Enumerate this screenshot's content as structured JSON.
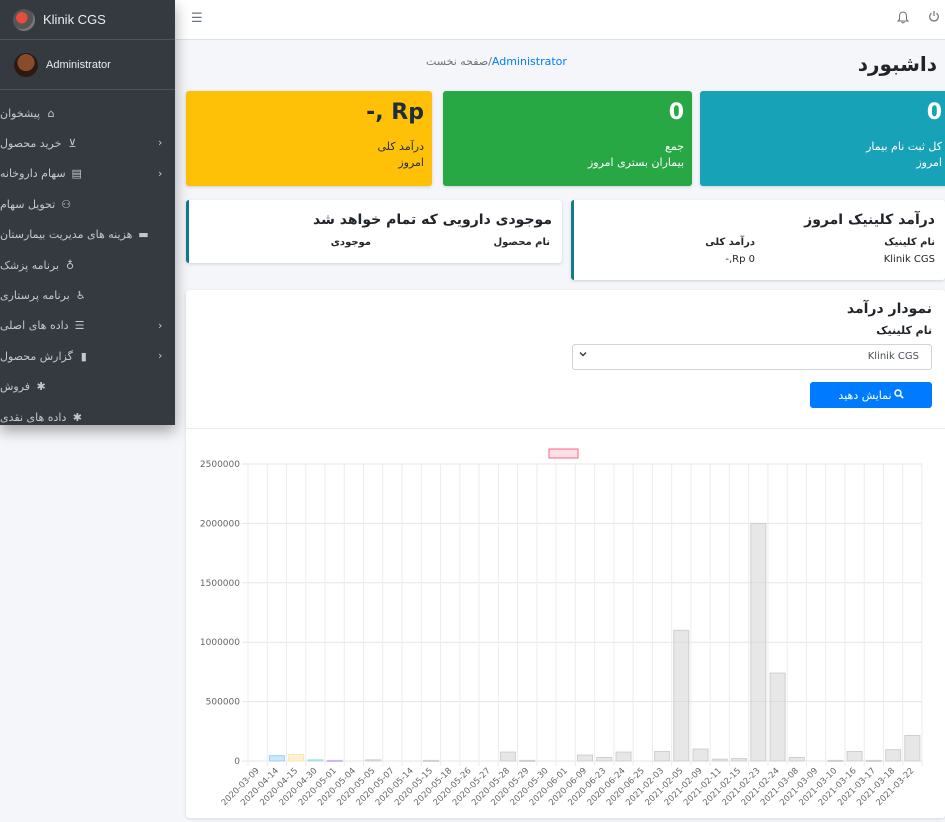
{
  "app": {
    "brand": "Klinik CGS",
    "user": "Administrator"
  },
  "sidebar": {
    "items": [
      {
        "label": "پیشخوان",
        "icon": "home-icon",
        "glyph": "⌂",
        "chevron": false
      },
      {
        "label": "خرید محصول",
        "icon": "cart-icon",
        "glyph": "⊻",
        "chevron": true
      },
      {
        "label": "سهام داروخانه",
        "icon": "building-icon",
        "glyph": "▤",
        "chevron": true
      },
      {
        "label": "تحویل سهام",
        "icon": "people-carry-icon",
        "glyph": "⚇",
        "chevron": false
      },
      {
        "label": "هزینه های مدیریت بیمارستان",
        "icon": "money-icon",
        "glyph": "▬",
        "chevron": false
      },
      {
        "label": "برنامه پزشک",
        "icon": "stethoscope-icon",
        "glyph": "♁",
        "chevron": false
      },
      {
        "label": "برنامه پرستاری",
        "icon": "wheelchair-icon",
        "glyph": "♿",
        "chevron": false
      },
      {
        "label": "داده های اصلی",
        "icon": "list-icon",
        "glyph": "☰",
        "chevron": true
      },
      {
        "label": "گزارش محصول",
        "icon": "book-icon",
        "glyph": "▮",
        "chevron": true
      },
      {
        "label": "فروش",
        "icon": "gear-icon",
        "glyph": "✱",
        "chevron": false
      },
      {
        "label": "داده های نقدی",
        "icon": "gear-icon",
        "glyph": "✱",
        "chevron": false
      }
    ]
  },
  "navbar": {
    "menu_icon": "☰",
    "bell_icon": "🔔",
    "power_icon": "⏻"
  },
  "header": {
    "title": "داشبورد",
    "breadcrumb_home": "صفحه نخست",
    "breadcrumb_sep": "/",
    "breadcrumb_current": "Administrator"
  },
  "boxes": {
    "patients": {
      "value": "0",
      "line1": "کل ثبت نام بیمار",
      "line2": "امروز"
    },
    "inpatients": {
      "value": "0",
      "line1": "جمع",
      "line2": "بیماران بستری امروز"
    },
    "income": {
      "value": "Rp ,-",
      "line1": "درآمد کلی",
      "line2": "امروز"
    }
  },
  "clinic_income": {
    "title": "درآمد کلینیک امروز",
    "col_clinic": "نام کلینیک",
    "col_total": "درآمد کلی",
    "row_clinic": "Klinik CGS",
    "row_total": "Rp 0,-"
  },
  "stock": {
    "title": "موجودی دارویی که تمام خواهد شد",
    "col_product": "نام محصول",
    "col_stock": "موجودی"
  },
  "income_chart": {
    "title": "نمودار درآمد",
    "clinic_label": "نام کلینیک",
    "select_value": "Klinik CGS",
    "button_label": "نمایش دهید",
    "search_icon": "🔍"
  },
  "chart_data": {
    "type": "bar",
    "ylim": [
      0,
      2500000
    ],
    "yticks": [
      0,
      500000,
      1000000,
      1500000,
      2000000,
      2500000
    ],
    "grid": true,
    "categories": [
      "2020-03-09",
      "2020-04-14",
      "2020-04-15",
      "2020-04-30",
      "2020-05-01",
      "2020-05-04",
      "2020-05-05",
      "2020-05-07",
      "2020-05-14",
      "2020-05-15",
      "2020-05-18",
      "2020-05-26",
      "2020-05-27",
      "2020-05-28",
      "2020-05-29",
      "2020-05-30",
      "2020-06-01",
      "2020-06-09",
      "2020-06-23",
      "2020-06-24",
      "2020-06-25",
      "2021-02-03",
      "2021-02-05",
      "2021-02-09",
      "2021-02-11",
      "2021-02-15",
      "2021-02-23",
      "2021-02-24",
      "2021-03-08",
      "2021-03-09",
      "2021-03-10",
      "2021-03-16",
      "2021-03-17",
      "2021-03-18",
      "2021-03-22"
    ],
    "values": [
      0,
      45000,
      55000,
      10000,
      5000,
      0,
      10000,
      0,
      0,
      5000,
      0,
      0,
      0,
      75000,
      5000,
      0,
      0,
      50000,
      30000,
      75000,
      0,
      80000,
      1100000,
      100000,
      15000,
      20000,
      2000000,
      740000,
      30000,
      0,
      5000,
      80000,
      5000,
      95000,
      215000
    ],
    "bar_colors": [
      "#cfcfcf",
      "#9ad0f5",
      "#ffe6aa",
      "#a5dfdf",
      "#ccb2ff",
      "#cfcfcf",
      "#cfcfcf",
      "#cfcfcf",
      "#cfcfcf",
      "#cfcfcf",
      "#cfcfcf",
      "#cfcfcf",
      "#cfcfcf",
      "#cfcfcf",
      "#cfcfcf",
      "#cfcfcf",
      "#cfcfcf",
      "#cfcfcf",
      "#cfcfcf",
      "#cfcfcf",
      "#cfcfcf",
      "#cfcfcf",
      "#cfcfcf",
      "#cfcfcf",
      "#cfcfcf",
      "#cfcfcf",
      "#cfcfcf",
      "#cfcfcf",
      "#cfcfcf",
      "#cfcfcf",
      "#cfcfcf",
      "#cfcfcf",
      "#cfcfcf",
      "#cfcfcf",
      "#cfcfcf"
    ],
    "legend": {
      "position": "top",
      "color": "#ff6384"
    }
  },
  "colors": {
    "info": "#17a2b8",
    "success": "#28a745",
    "warning": "#ffc107",
    "primary": "#007bff",
    "sidebar": "#343a40"
  }
}
